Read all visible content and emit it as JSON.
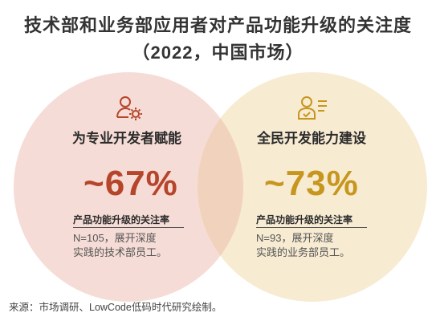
{
  "header": {
    "title": "技术部和业务部应用者对产品功能升级的关注度",
    "subtitle": "（2022，中国市场）"
  },
  "chart_data": {
    "type": "venn",
    "title": "技术部和业务部应用者对产品功能升级的关注度",
    "subtitle": "（2022，中国市场）",
    "sets": [
      {
        "name": "为专业开发者赋能",
        "value_text": "~67%",
        "value": 67,
        "metric_label": "产品功能升级的关注率",
        "note_line1": "N=105，展开深度",
        "note_line2": "实践的技术部员工。",
        "color": "#f6dcd6",
        "accent": "#b5452b"
      },
      {
        "name": "全民开发能力建设",
        "value_text": "~73%",
        "value": 73,
        "metric_label": "产品功能升级的关注率",
        "note_line1": "N=93，展开深度",
        "note_line2": "实践的业务部员工。",
        "color": "#f7ebd2",
        "accent": "#c7961e"
      }
    ],
    "overlap_color": "#f1d2bd"
  },
  "footer": {
    "source": "来源：市场调研、LowCode低码时代研究绘制。"
  },
  "icons": {
    "left": "developer-gear-icon",
    "right": "user-checklist-icon"
  }
}
